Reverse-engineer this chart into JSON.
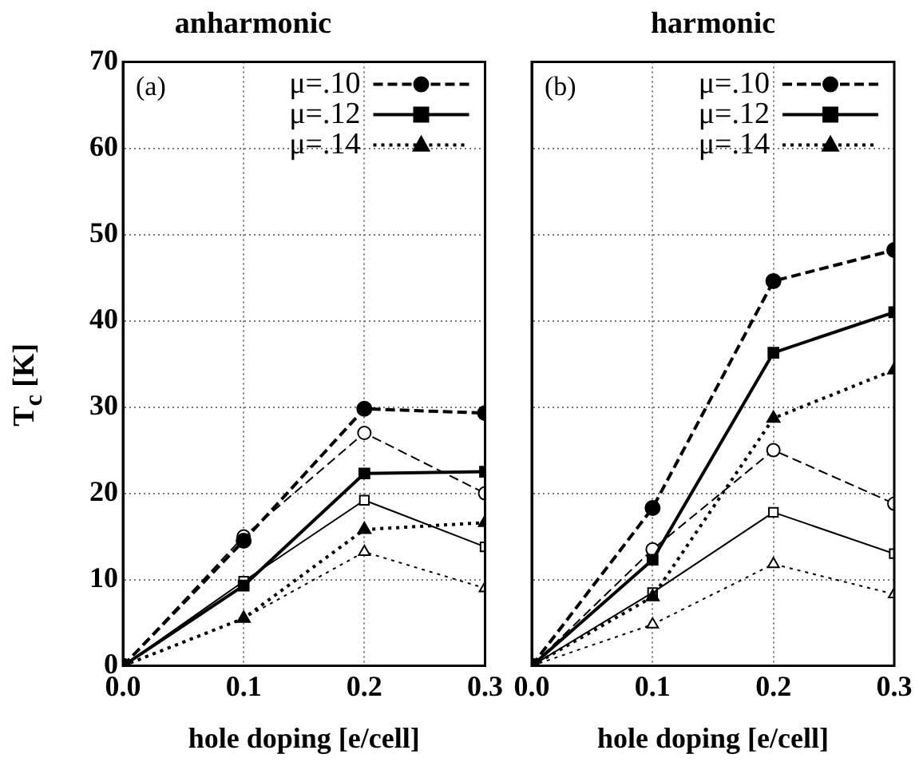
{
  "chart_data": [
    {
      "type": "line",
      "title": "anharmonic",
      "xlabel": "hole doping [e/cell]",
      "ylabel": "T$_{c}$ [K]",
      "annotations": [
        "(a)"
      ],
      "x": [
        0,
        0.1,
        0.2,
        0.3
      ],
      "xlim": [
        0,
        0.3
      ],
      "xticks": [
        {
          "value": 0,
          "label": "0.0"
        },
        0.1,
        0.2,
        0.3
      ],
      "ylim": [
        0,
        70
      ],
      "yticks": [
        0,
        10,
        20,
        30,
        40,
        50,
        60,
        70
      ],
      "grid": true,
      "legend": "top right",
      "series": [
        {
          "name": "μ=.10",
          "color": "#000000",
          "marker": "circle",
          "line_style": "dashed",
          "values": [
            0,
            14.5,
            29.8,
            29.3
          ]
        },
        {
          "name": "μ=.12",
          "color": "#000000",
          "marker": "square",
          "line_style": "solid",
          "values": [
            0,
            9.3,
            22.3,
            22.5
          ]
        },
        {
          "name": "μ=.14",
          "color": "#000000",
          "marker": "triangle",
          "line_style": "dotted",
          "values": [
            0,
            5.5,
            15.8,
            16.6
          ]
        },
        {
          "color": "#000000",
          "marker": "circle",
          "line_style": "dashed",
          "values": [
            0,
            15,
            27,
            20
          ]
        },
        {
          "color": "#000000",
          "marker": "square",
          "line_style": "solid",
          "values": [
            0,
            9.8,
            19.2,
            13.8
          ]
        },
        {
          "color": "#000000",
          "marker": "triangle",
          "line_style": "dotted",
          "values": [
            0,
            5.5,
            13.2,
            9
          ]
        }
      ]
    },
    {
      "type": "line",
      "title": "harmonic",
      "xlabel": "hole doping [e/cell]",
      "annotations": [
        "(b)"
      ],
      "x": [
        0,
        0.1,
        0.2,
        0.3
      ],
      "xlim": [
        0,
        0.3
      ],
      "xticks": [
        {
          "value": 0,
          "label": "0.0"
        },
        0.1,
        0.2,
        0.3
      ],
      "ylim": [
        0,
        70
      ],
      "yticks": [
        0,
        10,
        20,
        30,
        40,
        50,
        60,
        70
      ],
      "tick_labels": "x",
      "grid": true,
      "legend": "top right",
      "series": [
        {
          "name": "μ=.10",
          "color": "#000000",
          "marker": "circle",
          "line_style": "dashed",
          "values": [
            0,
            18.3,
            44.6,
            48.2
          ]
        },
        {
          "name": "μ=.12",
          "color": "#000000",
          "marker": "square",
          "line_style": "solid",
          "values": [
            0,
            12.3,
            36.3,
            41
          ]
        },
        {
          "name": "μ=.14",
          "color": "#000000",
          "marker": "triangle",
          "line_style": "dotted",
          "values": [
            0,
            8,
            28.7,
            34.3
          ]
        },
        {
          "color": "#000000",
          "marker": "circle",
          "line_style": "dashed",
          "values": [
            0,
            13.5,
            25,
            18.8
          ]
        },
        {
          "color": "#000000",
          "marker": "square",
          "line_style": "solid",
          "values": [
            0,
            8.5,
            17.8,
            13
          ]
        },
        {
          "color": "#000000",
          "marker": "triangle",
          "line_style": "dotted",
          "values": [
            0,
            4.8,
            11.8,
            8.3
          ]
        }
      ]
    }
  ]
}
